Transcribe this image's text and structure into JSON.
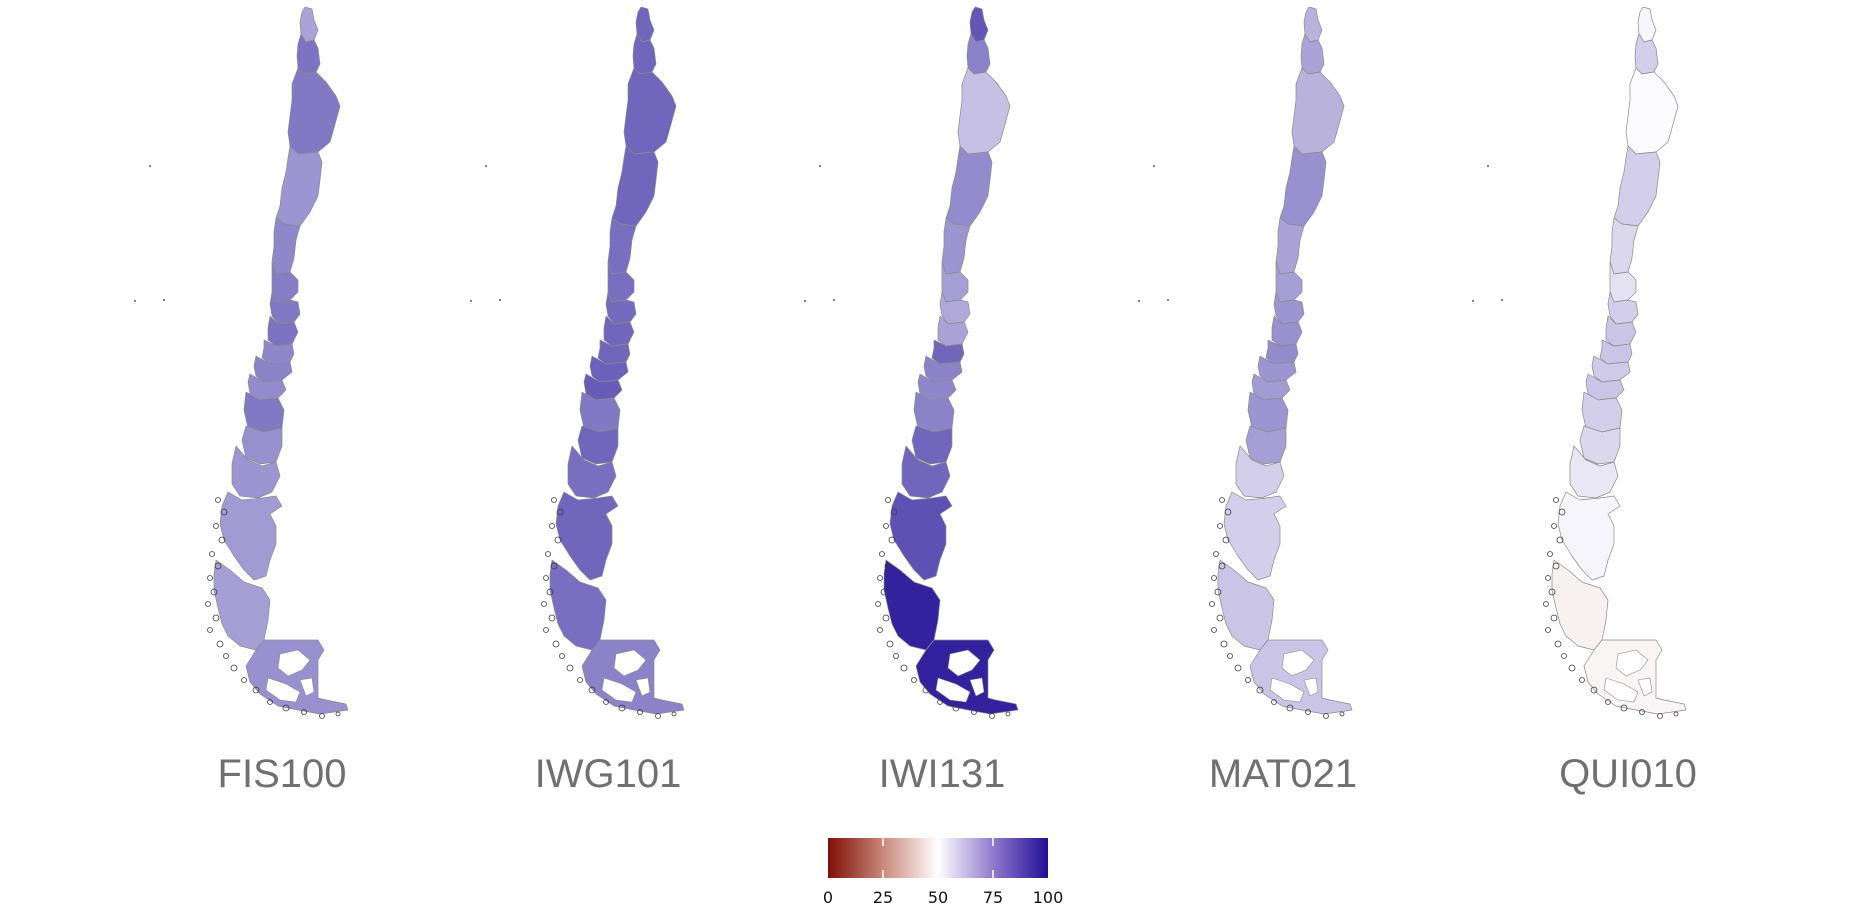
{
  "panels": [
    {
      "label": "FIS100",
      "regions": [
        69,
        79,
        78,
        72,
        75,
        77,
        78,
        79,
        75,
        76,
        74,
        78,
        73,
        72,
        71,
        70,
        73
      ]
    },
    {
      "label": "IWG101",
      "regions": [
        82,
        82,
        82,
        82,
        80,
        80,
        81,
        82,
        82,
        83,
        84,
        78,
        82,
        80,
        82,
        80,
        76
      ]
    },
    {
      "label": "IWI131",
      "regions": [
        85,
        76,
        63,
        74,
        72,
        70,
        68,
        69,
        82,
        76,
        75,
        76,
        82,
        82,
        86,
        96,
        96
      ]
    },
    {
      "label": "MAT021",
      "regions": [
        66,
        69,
        66,
        73,
        69,
        70,
        72,
        73,
        74,
        72,
        71,
        72,
        70,
        60,
        60,
        62,
        62
      ]
    },
    {
      "label": "QUI010",
      "regions": [
        52,
        60,
        51,
        60,
        58,
        56,
        60,
        62,
        62,
        61,
        62,
        60,
        58,
        55,
        52,
        47,
        48
      ]
    }
  ],
  "legend": {
    "min": 0,
    "max": 100,
    "mid": 50,
    "low_color": "#7f0e06",
    "mid_color": "#ffffff",
    "high_color": "#210e96",
    "ticks": [
      "0",
      "25",
      "50",
      "75",
      "100"
    ]
  },
  "colors": {
    "border": "#8a8a8a",
    "label": "#707070"
  }
}
